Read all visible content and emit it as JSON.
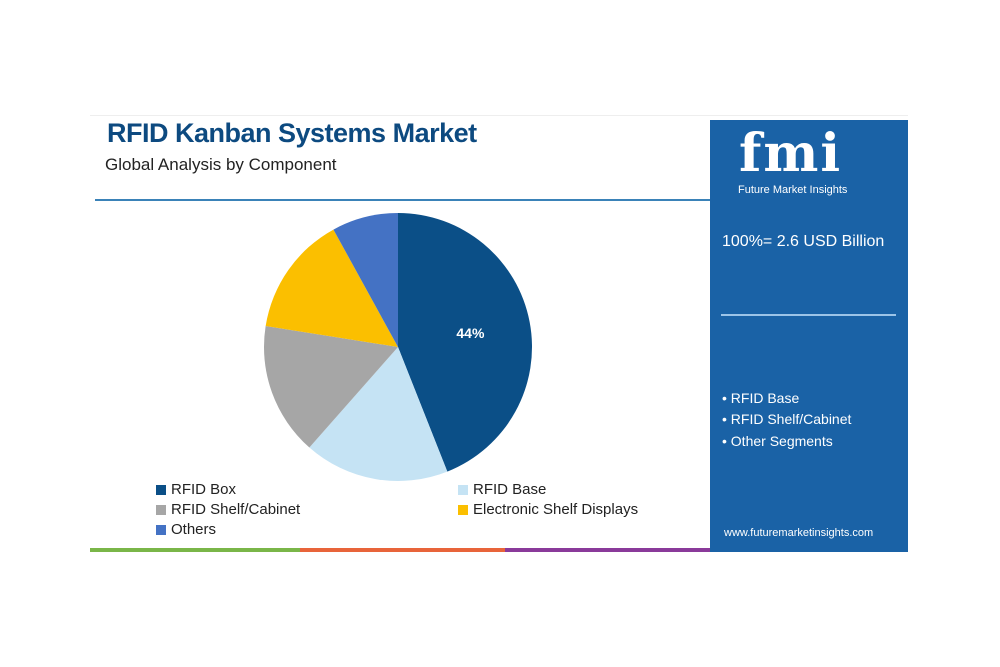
{
  "chart_data": {
    "type": "pie",
    "title": "RFID Kanban Systems Market",
    "subtitle": "Global Analysis by Component",
    "categories": [
      "RFID Box",
      "RFID Base",
      "RFID Shelf/Cabinet",
      "Electronic Shelf Displays",
      "Others"
    ],
    "values": [
      44,
      17.5,
      16,
      14.5,
      8
    ],
    "colors": [
      "#0b4f87",
      "#c5e3f4",
      "#a6a6a6",
      "#fbbf00",
      "#4472c4"
    ],
    "data_labels": [
      "44%",
      "",
      "",
      "",
      ""
    ],
    "legend_position": "bottom"
  },
  "side_panel": {
    "logo": "fmi",
    "logo_subtitle": "Future Market Insights",
    "total": "100%= 2.6 USD Billion",
    "segments": [
      "• RFID Base",
      "• RFID Shelf/Cabinet",
      "• Other Segments"
    ],
    "url": "www.futuremarketinsights.com",
    "color": "#1a62a6"
  }
}
